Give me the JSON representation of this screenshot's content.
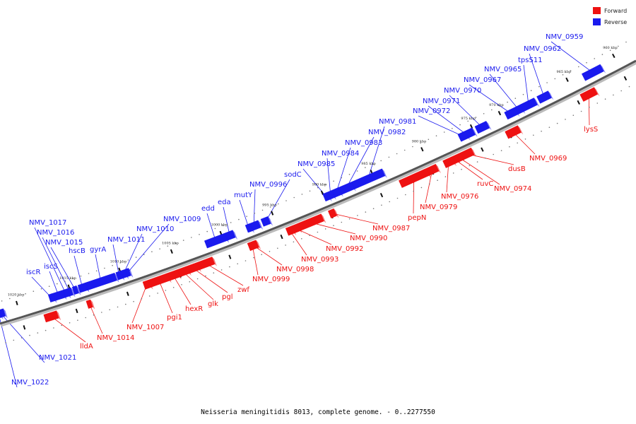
{
  "colors": {
    "forward": "#ee1111",
    "reverse": "#1a1aee",
    "backbone": "#555555",
    "backbone_shadow": "#bbbbbb"
  },
  "legend": {
    "forward": "Forward",
    "reverse": "Reverse"
  },
  "caption": "Neisseria meningitidis 8013, complete genome. - 0..2277550",
  "scale_unit": "kbp",
  "scale_ticks": [
    "960 kbp",
    "965 kbp",
    "970 kbp",
    "975 kbp",
    "980 kbp",
    "985 kbp",
    "990 kbp",
    "995 kbp",
    "1000 kbp",
    "1005 kbp",
    "1010 kbp",
    "1015 kbp",
    "1020 kbp"
  ],
  "reverse_genes": [
    "NMV_0959",
    "NMV_0962",
    "tpsS11",
    "NMV_0965",
    "NMV_0967",
    "NMV_0970",
    "NMV_0971",
    "NMV_0972",
    "NMV_0981",
    "NMV_0982",
    "NMV_0983",
    "NMV_0984",
    "NMV_0985",
    "sodC",
    "NMV_0996",
    "mutY",
    "eda",
    "edd",
    "NMV_1009",
    "NMV_1010",
    "NMV_1011",
    "gyrA",
    "hscB",
    "NMV_1015",
    "NMV_1016",
    "NMV_1017",
    "iscS",
    "iscR",
    "NMV_1021",
    "NMV_1022"
  ],
  "forward_genes": [
    "lysS",
    "NMV_0969",
    "dusB",
    "NMV_0974",
    "ruvC",
    "NMV_0976",
    "NMV_0979",
    "pepN",
    "NMV_0987",
    "NMV_0990",
    "NMV_0992",
    "NMV_0993",
    "NMV_0998",
    "NMV_0999",
    "zwf",
    "pgl",
    "glk",
    "hexR",
    "pgi1",
    "NMV_1007",
    "NMV_1014",
    "lldA"
  ]
}
